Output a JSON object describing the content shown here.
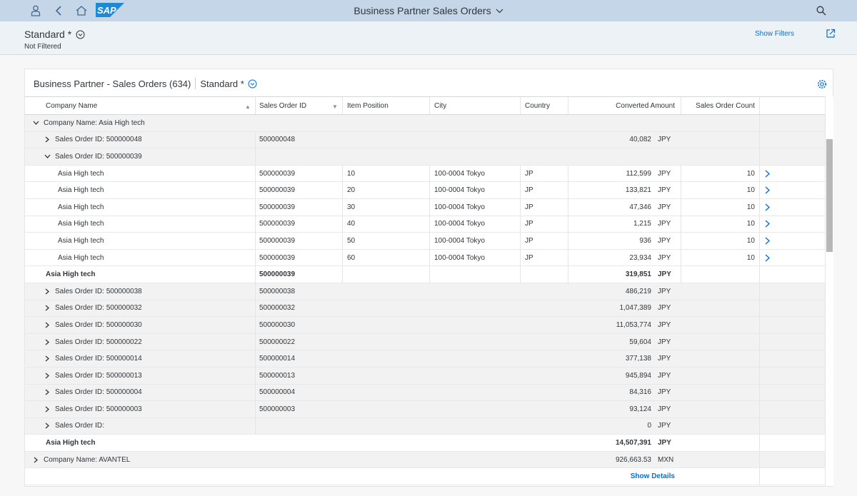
{
  "shell": {
    "title": "Business Partner Sales Orders",
    "logo_text": "SAP",
    "icons": [
      "user-icon",
      "back-icon",
      "home-icon",
      "search-icon"
    ]
  },
  "header": {
    "variant": "Standard *",
    "filter_status": "Not Filtered",
    "show_filters": "Show Filters"
  },
  "table": {
    "title": "Business Partner - Sales Orders (634)",
    "variant": "Standard *",
    "columns": [
      "Company Name",
      "Sales Order ID",
      "Item Position",
      "City",
      "Country",
      "Converted Amount",
      "Sales Order Count"
    ],
    "rows": [
      {
        "type": "group1",
        "expand": "down",
        "label": "Company Name: Asia High tech"
      },
      {
        "type": "group2",
        "expand": "right",
        "label": "Sales Order ID: 500000048",
        "so": "500000048",
        "amt": "40,082",
        "cur": "JPY"
      },
      {
        "type": "group2",
        "expand": "down",
        "label": "Sales Order ID: 500000039"
      },
      {
        "type": "item",
        "name": "Asia High tech",
        "so": "500000039",
        "pos": "10",
        "city": "100-0004 Tokyo",
        "cty": "JP",
        "amt": "112,599",
        "cur": "JPY",
        "cnt": "10"
      },
      {
        "type": "item",
        "name": "Asia High tech",
        "so": "500000039",
        "pos": "20",
        "city": "100-0004 Tokyo",
        "cty": "JP",
        "amt": "133,821",
        "cur": "JPY",
        "cnt": "10"
      },
      {
        "type": "item",
        "name": "Asia High tech",
        "so": "500000039",
        "pos": "30",
        "city": "100-0004 Tokyo",
        "cty": "JP",
        "amt": "47,346",
        "cur": "JPY",
        "cnt": "10"
      },
      {
        "type": "item",
        "name": "Asia High tech",
        "so": "500000039",
        "pos": "40",
        "city": "100-0004 Tokyo",
        "cty": "JP",
        "amt": "1,215",
        "cur": "JPY",
        "cnt": "10"
      },
      {
        "type": "item",
        "name": "Asia High tech",
        "so": "500000039",
        "pos": "50",
        "city": "100-0004 Tokyo",
        "cty": "JP",
        "amt": "936",
        "cur": "JPY",
        "cnt": "10"
      },
      {
        "type": "item",
        "name": "Asia High tech",
        "so": "500000039",
        "pos": "60",
        "city": "100-0004 Tokyo",
        "cty": "JP",
        "amt": "23,934",
        "cur": "JPY",
        "cnt": "10"
      },
      {
        "type": "subtotal",
        "name": "Asia High tech",
        "so": "500000039",
        "amt": "319,851",
        "cur": "JPY"
      },
      {
        "type": "group2",
        "expand": "right",
        "label": "Sales Order ID: 500000038",
        "so": "500000038",
        "amt": "486,219",
        "cur": "JPY"
      },
      {
        "type": "group2",
        "expand": "right",
        "label": "Sales Order ID: 500000032",
        "so": "500000032",
        "amt": "1,047,389",
        "cur": "JPY"
      },
      {
        "type": "group2",
        "expand": "right",
        "label": "Sales Order ID: 500000030",
        "so": "500000030",
        "amt": "11,053,774",
        "cur": "JPY"
      },
      {
        "type": "group2",
        "expand": "right",
        "label": "Sales Order ID: 500000022",
        "so": "500000022",
        "amt": "59,604",
        "cur": "JPY"
      },
      {
        "type": "group2",
        "expand": "right",
        "label": "Sales Order ID: 500000014",
        "so": "500000014",
        "amt": "377,138",
        "cur": "JPY"
      },
      {
        "type": "group2",
        "expand": "right",
        "label": "Sales Order ID: 500000013",
        "so": "500000013",
        "amt": "945,894",
        "cur": "JPY"
      },
      {
        "type": "group2",
        "expand": "right",
        "label": "Sales Order ID: 500000004",
        "so": "500000004",
        "amt": "84,316",
        "cur": "JPY"
      },
      {
        "type": "group2",
        "expand": "right",
        "label": "Sales Order ID: 500000003",
        "so": "500000003",
        "amt": "93,124",
        "cur": "JPY"
      },
      {
        "type": "group2",
        "expand": "right",
        "label": "Sales Order ID:",
        "amt": "0",
        "cur": "JPY"
      },
      {
        "type": "total",
        "name": "Asia High tech",
        "amt": "14,507,391",
        "cur": "JPY"
      },
      {
        "type": "group1",
        "expand": "right",
        "label": "Company Name: AVANTEL",
        "amt": "926,663.53",
        "cur": "MXN"
      },
      {
        "type": "details",
        "label": "Show Details"
      }
    ]
  },
  "colors": {
    "accent": "#0a6ed1",
    "shell_bg": "#c5d6e8",
    "text": "#32363a"
  }
}
